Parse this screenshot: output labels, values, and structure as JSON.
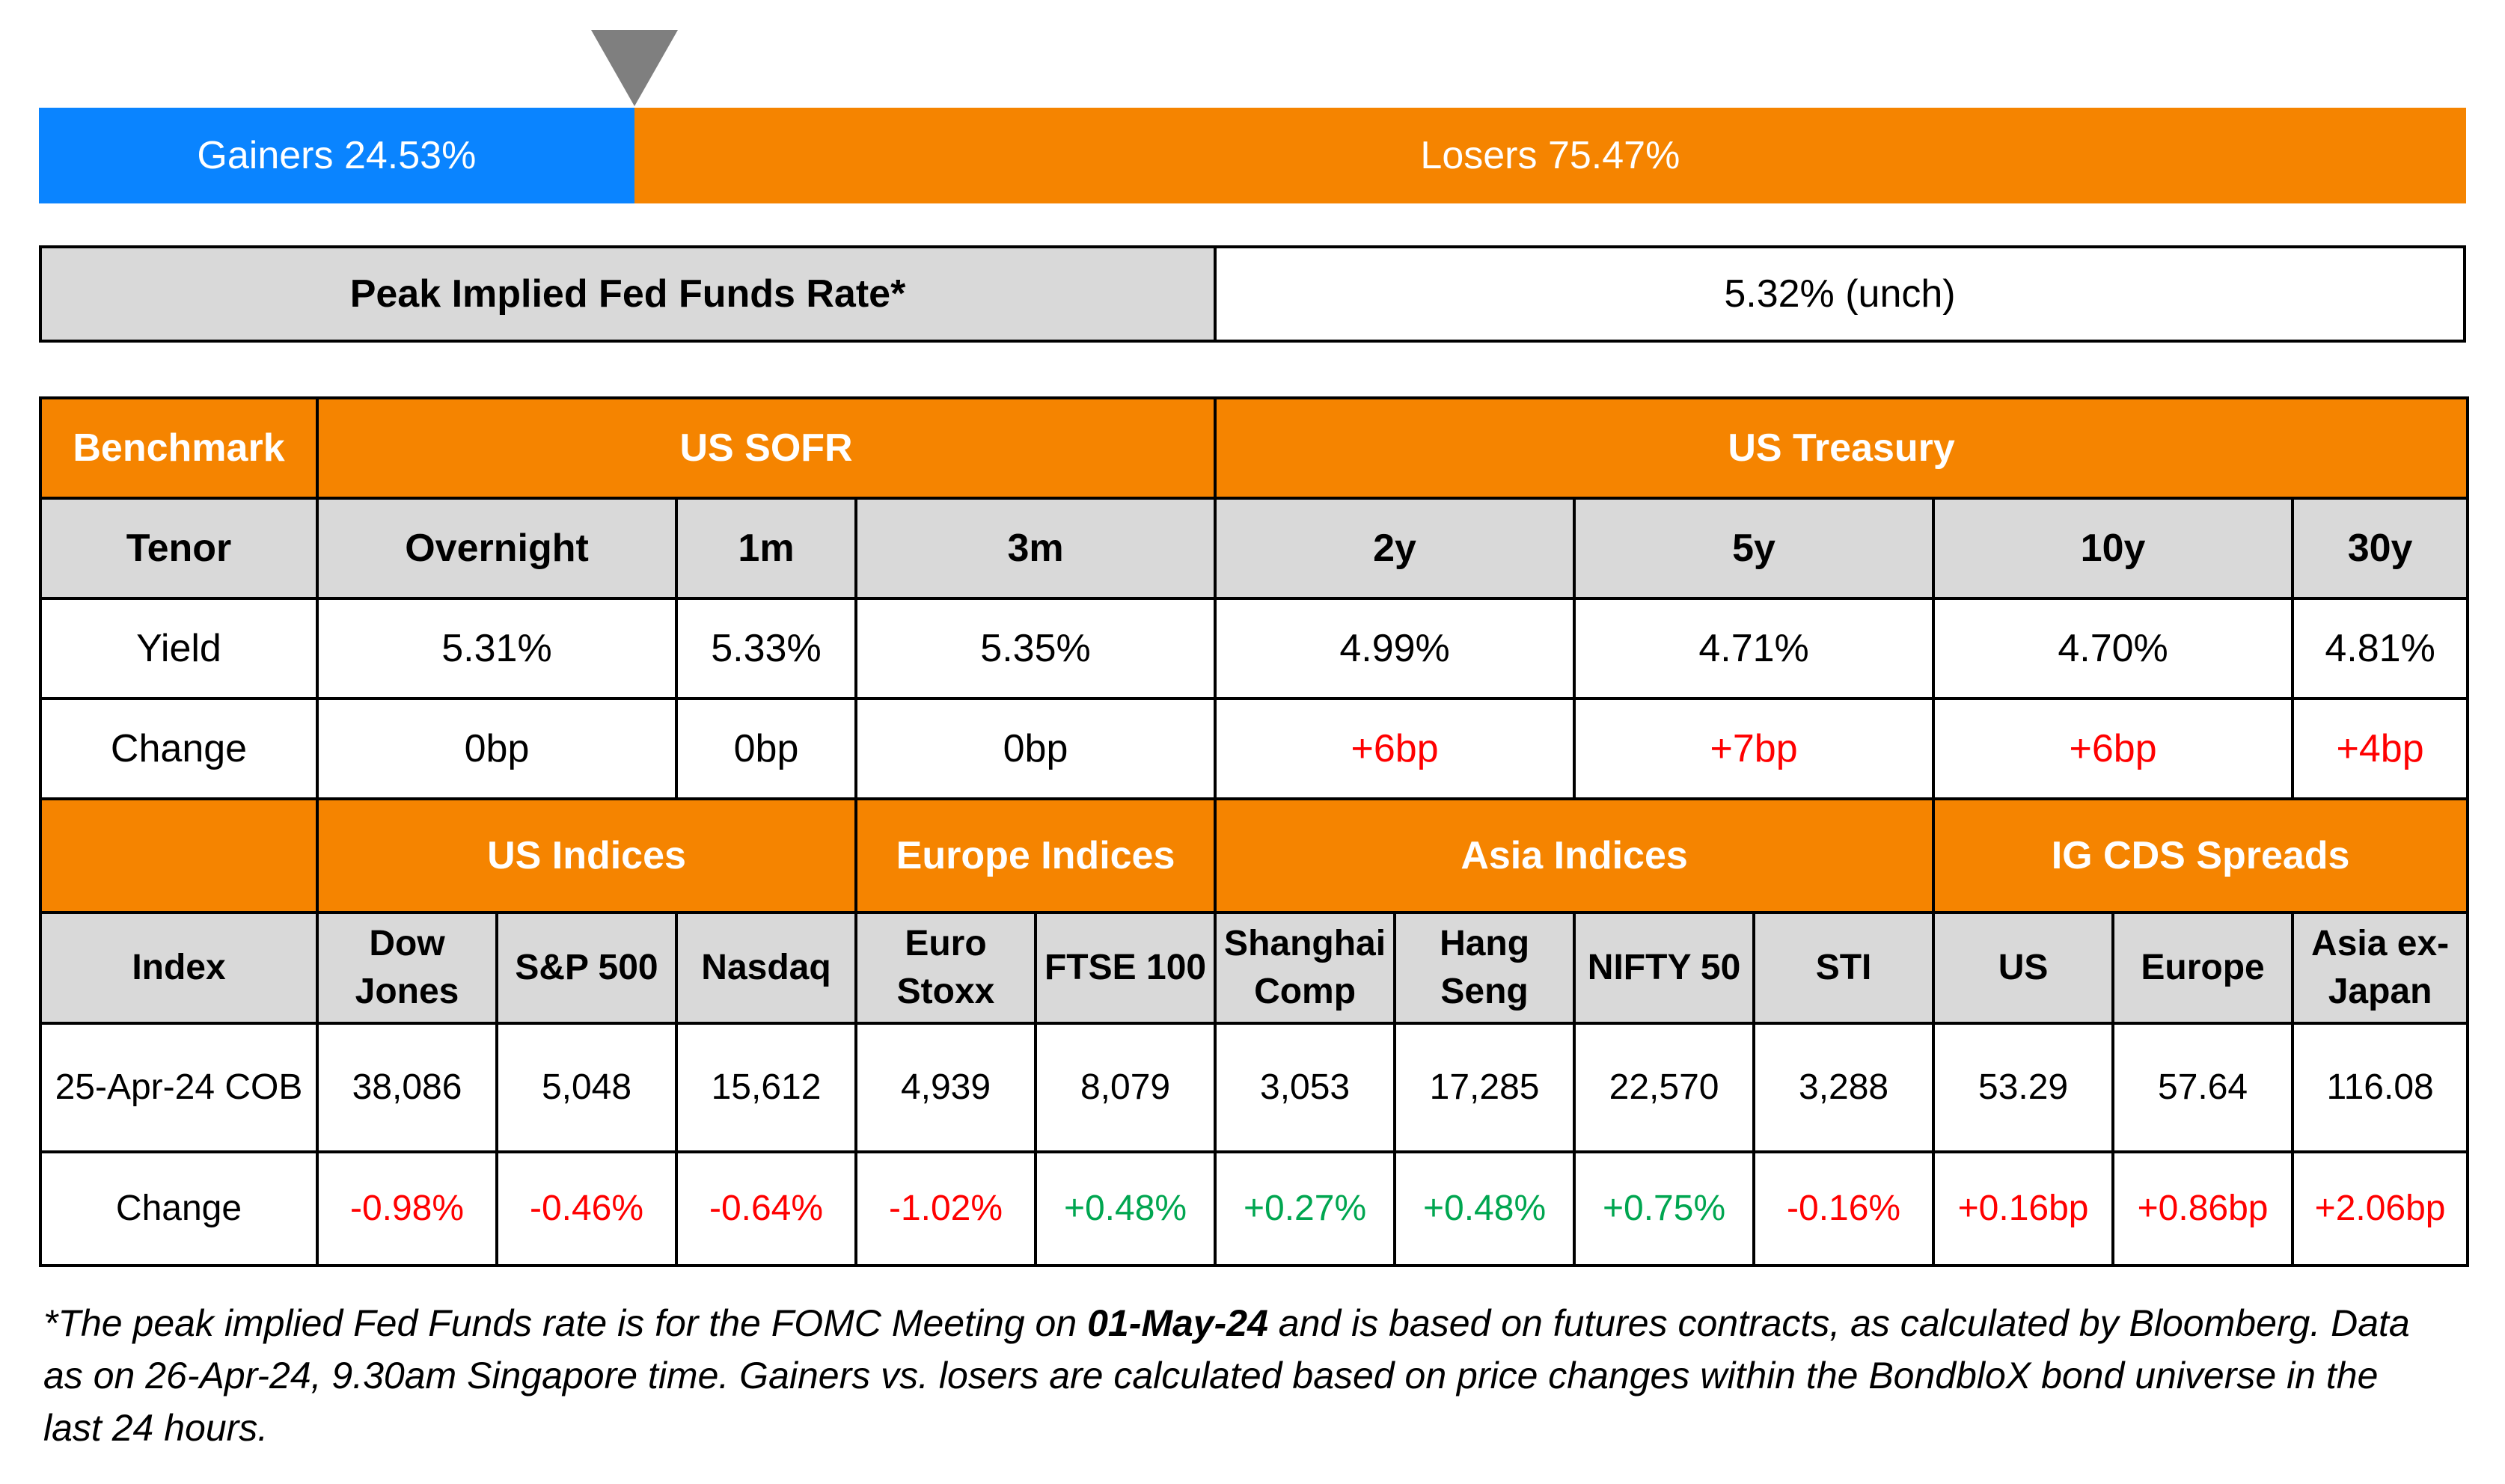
{
  "breadth": {
    "gainers_label": "Gainers 24.53%",
    "losers_label": "Losers 75.47%",
    "gainers_pct": 24.53,
    "losers_pct": 75.47,
    "colors": {
      "gainers": "#0a84ff",
      "losers": "#f58400",
      "pointer": "#7f7f7f"
    }
  },
  "peak": {
    "label": "Peak Implied Fed Funds Rate*",
    "value": "5.32% (unch)"
  },
  "rates": {
    "benchmark_label": "Benchmark",
    "sofr_label": "US SOFR",
    "treasury_label": "US Treasury",
    "tenor_label": "Tenor",
    "tenors": [
      "Overnight",
      "1m",
      "3m",
      "2y",
      "5y",
      "10y",
      "30y"
    ],
    "yield_label": "Yield",
    "yields": [
      "5.31%",
      "5.33%",
      "5.35%",
      "4.99%",
      "4.71%",
      "4.70%",
      "4.81%"
    ],
    "change_label": "Change",
    "changes": [
      "0bp",
      "0bp",
      "0bp",
      "+6bp",
      "+7bp",
      "+6bp",
      "+4bp"
    ]
  },
  "indices": {
    "groups": [
      "US Indices",
      "Europe Indices",
      "Asia Indices",
      "IG CDS Spreads"
    ],
    "index_label": "Index",
    "names": [
      [
        "Dow",
        "Jones"
      ],
      [
        "S&P 500",
        ""
      ],
      [
        "Nasdaq",
        ""
      ],
      [
        "Euro",
        "Stoxx"
      ],
      [
        "FTSE 100",
        ""
      ],
      [
        "Shanghai",
        "Comp"
      ],
      [
        "Hang",
        "Seng"
      ],
      [
        "NIFTY 50",
        ""
      ],
      [
        "STI",
        ""
      ],
      [
        "US",
        ""
      ],
      [
        "Europe",
        ""
      ],
      [
        "Asia ex-",
        "Japan"
      ]
    ],
    "date_label": "25-Apr-24 COB",
    "values": [
      "38,086",
      "5,048",
      "15,612",
      "4,939",
      "8,079",
      "3,053",
      "17,285",
      "22,570",
      "3,288",
      "53.29",
      "57.64",
      "116.08"
    ],
    "change_label": "Change",
    "changes": [
      "-0.98%",
      "-0.46%",
      "-0.64%",
      "-1.02%",
      "+0.48%",
      "+0.27%",
      "+0.48%",
      "+0.75%",
      "-0.16%",
      "+0.16bp",
      "+0.86bp",
      "+2.06bp"
    ]
  },
  "footnote": {
    "part1": "*The peak implied Fed Funds rate is for the FOMC Meeting on ",
    "bold_date": "01-May-24",
    "part2": " and is based on futures contracts, as calculated by Bloomberg. Data as on 26-Apr-24, 9.30am Singapore time. Gainers vs. losers are calculated based on price changes within the BondbloX bond universe in the last 24 hours."
  }
}
